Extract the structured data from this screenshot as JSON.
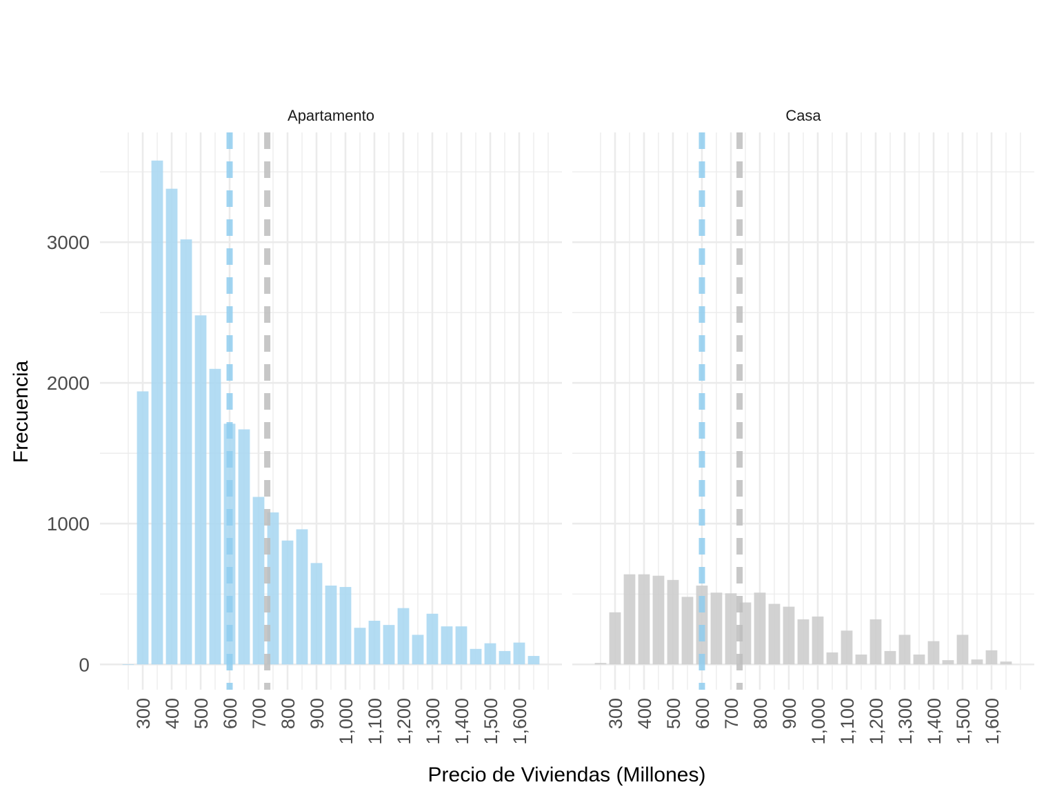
{
  "chart_data": {
    "type": "bar",
    "xlabel": "Precio de Viviendas (Millones)",
    "ylabel": "Frecuencia",
    "y_ticks": [
      "0",
      "1000",
      "2000",
      "3000"
    ],
    "x_ticks": [
      "300",
      "400",
      "500",
      "600",
      "700",
      "800",
      "900",
      "1,000",
      "1,100",
      "1,200",
      "1,300",
      "1,400",
      "1,500",
      "1,600"
    ],
    "x_tick_values": [
      300,
      400,
      500,
      600,
      700,
      800,
      900,
      1000,
      1100,
      1200,
      1300,
      1400,
      1500,
      1600
    ],
    "xlim": [
      250,
      1700
    ],
    "ylim": [
      -180,
      3780
    ],
    "grid": true,
    "bin_centers": [
      250,
      300,
      350,
      400,
      450,
      500,
      550,
      600,
      650,
      700,
      750,
      800,
      850,
      900,
      950,
      1000,
      1050,
      1100,
      1150,
      1200,
      1250,
      1300,
      1350,
      1400,
      1450,
      1500,
      1550,
      1600,
      1650
    ],
    "panels": [
      {
        "name": "Apartamento",
        "color": "#a9d7f1",
        "values": [
          0,
          1940,
          3580,
          3380,
          3020,
          2480,
          2100,
          1710,
          1670,
          1190,
          1080,
          880,
          960,
          720,
          560,
          550,
          260,
          310,
          280,
          400,
          210,
          360,
          270,
          270,
          110,
          150,
          95,
          155,
          60
        ],
        "reference_lines": [
          {
            "x": 600,
            "color": "#8fcdef",
            "style": "dashed"
          },
          {
            "x": 730,
            "color": "#bdbdbd",
            "style": "dashed"
          }
        ]
      },
      {
        "name": "Casa",
        "color": "#cccccc",
        "values": [
          10,
          370,
          640,
          640,
          630,
          600,
          480,
          560,
          510,
          505,
          440,
          510,
          430,
          410,
          320,
          340,
          85,
          240,
          70,
          320,
          95,
          210,
          70,
          165,
          30,
          210,
          35,
          100,
          20
        ],
        "reference_lines": [
          {
            "x": 600,
            "color": "#8fcdef",
            "style": "dashed"
          },
          {
            "x": 730,
            "color": "#bdbdbd",
            "style": "dashed"
          }
        ]
      }
    ]
  }
}
